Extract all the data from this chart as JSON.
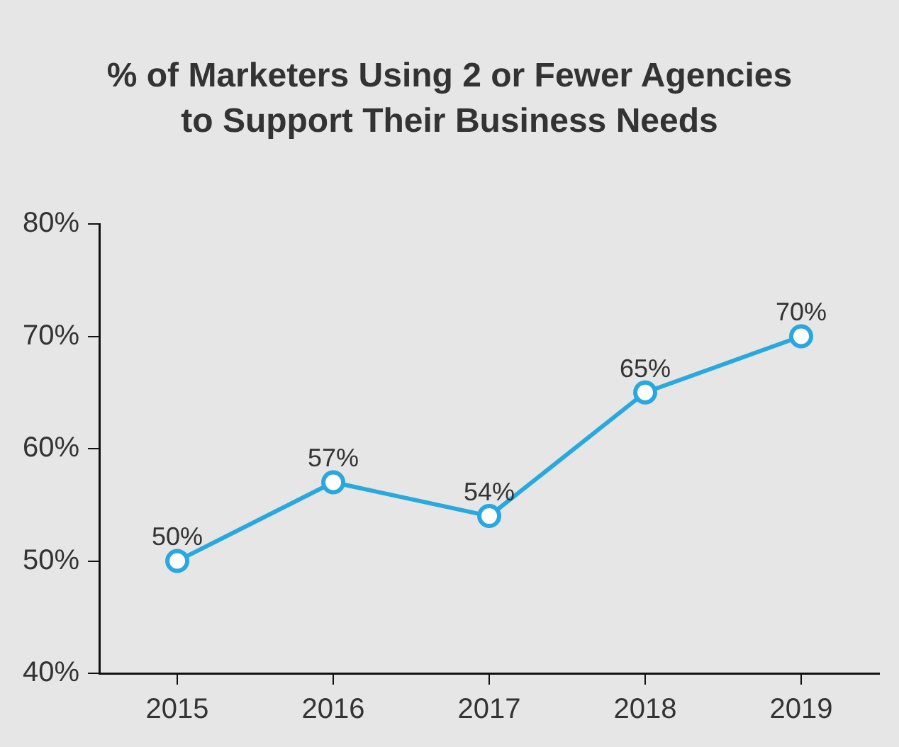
{
  "chart_data": {
    "type": "line",
    "title": "% of Marketers Using 2 or Fewer Agencies to Support Their Business Needs",
    "categories": [
      "2015",
      "2016",
      "2017",
      "2018",
      "2019"
    ],
    "series": [
      {
        "color": "#29a8e0",
        "values": [
          50,
          57,
          54,
          65,
          70
        ],
        "value_labels": [
          "50%",
          "57%",
          "54%",
          "65%",
          "70%"
        ]
      }
    ],
    "ylim": [
      40,
      80
    ],
    "yticks": [
      {
        "value": 40,
        "label": "40%"
      },
      {
        "value": 50,
        "label": "50%"
      },
      {
        "value": 60,
        "label": "60%"
      },
      {
        "value": 70,
        "label": "70%"
      },
      {
        "value": 80,
        "label": "80%"
      }
    ],
    "grid": false,
    "legend": false,
    "marker": "circle",
    "line_style": "solid"
  }
}
